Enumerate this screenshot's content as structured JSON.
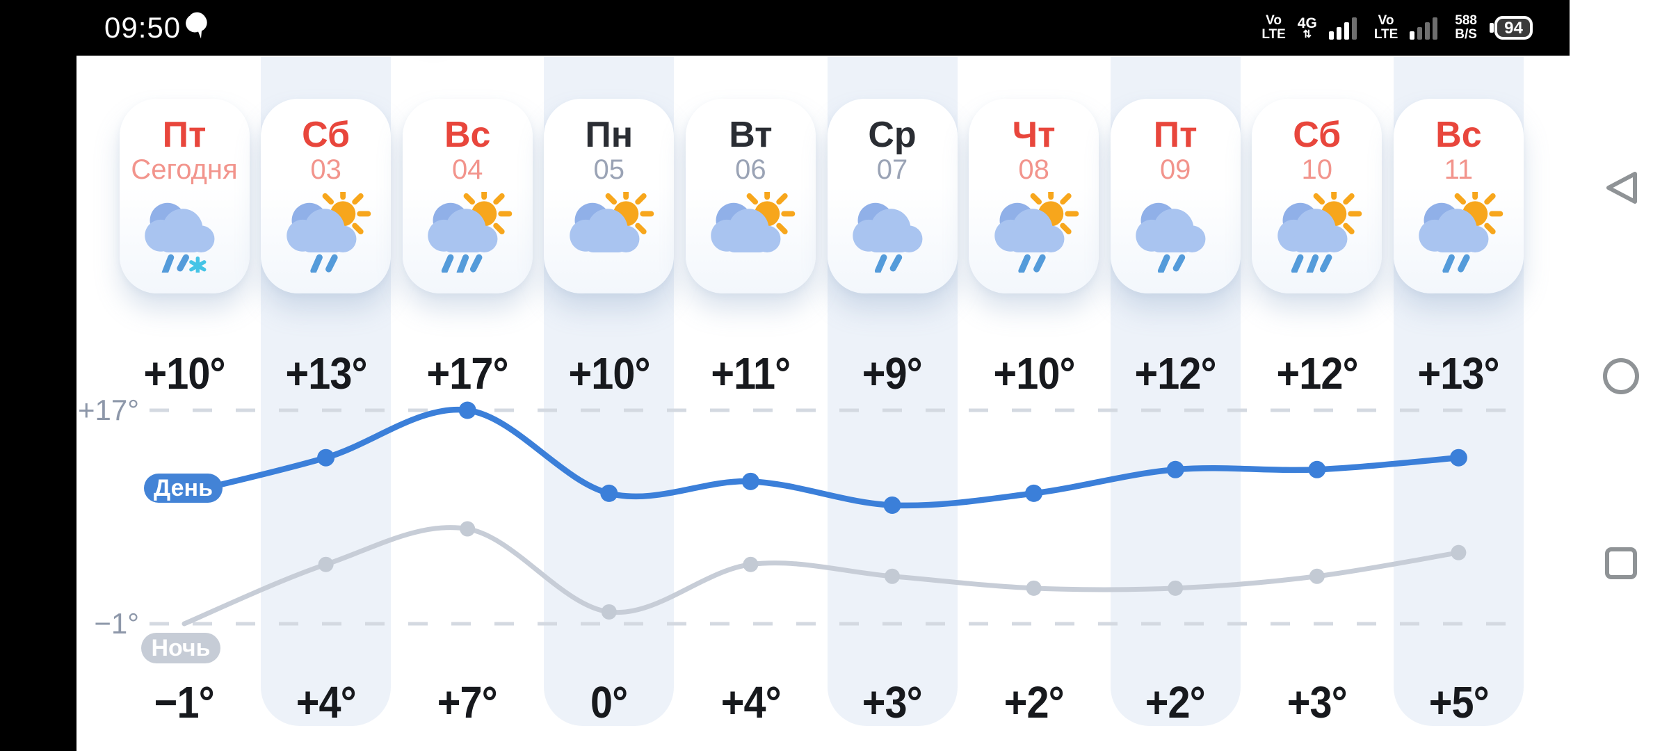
{
  "status_bar": {
    "time": "09:50",
    "notification_icon": "chat-bubble-icon",
    "sim1": {
      "line1": "Vo",
      "line2": "LTE",
      "network": "4G",
      "net_arrows": "⇅"
    },
    "sim2": {
      "line1": "Vo",
      "line2": "LTE"
    },
    "speed": {
      "value": "588",
      "unit": "B/S"
    },
    "battery_percent": "94"
  },
  "forecast": {
    "days": [
      {
        "name": "Пт",
        "date": "Сегодня",
        "holiday": true,
        "striped": false,
        "icon": "cloud-rain-snow",
        "day_temp": "+10°",
        "night_temp": "−1°"
      },
      {
        "name": "Сб",
        "date": "03",
        "holiday": true,
        "striped": true,
        "icon": "sun-cloud-rain-2",
        "day_temp": "+13°",
        "night_temp": "+4°"
      },
      {
        "name": "Вс",
        "date": "04",
        "holiday": true,
        "striped": false,
        "icon": "sun-cloud-rain-3",
        "day_temp": "+17°",
        "night_temp": "+7°"
      },
      {
        "name": "Пн",
        "date": "05",
        "holiday": false,
        "striped": true,
        "icon": "sun-cloud",
        "day_temp": "+10°",
        "night_temp": "0°"
      },
      {
        "name": "Вт",
        "date": "06",
        "holiday": false,
        "striped": false,
        "icon": "sun-cloud",
        "day_temp": "+11°",
        "night_temp": "+4°"
      },
      {
        "name": "Ср",
        "date": "07",
        "holiday": false,
        "striped": true,
        "icon": "cloud-rain-2",
        "day_temp": "+9°",
        "night_temp": "+3°"
      },
      {
        "name": "Чт",
        "date": "08",
        "holiday": true,
        "striped": false,
        "icon": "sun-cloud-rain-2",
        "day_temp": "+10°",
        "night_temp": "+2°"
      },
      {
        "name": "Пт",
        "date": "09",
        "holiday": true,
        "striped": true,
        "icon": "cloud-rain-2",
        "day_temp": "+12°",
        "night_temp": "+2°"
      },
      {
        "name": "Сб",
        "date": "10",
        "holiday": true,
        "striped": false,
        "icon": "sun-cloud-rain-3",
        "day_temp": "+12°",
        "night_temp": "+3°"
      },
      {
        "name": "Вс",
        "date": "11",
        "holiday": true,
        "striped": true,
        "icon": "sun-cloud-rain-2",
        "day_temp": "+13°",
        "night_temp": "+5°"
      }
    ]
  },
  "chart": {
    "axis_top_label": "+17°",
    "axis_bottom_label": "−1°",
    "legend_day": "День",
    "legend_night": "Ночь"
  },
  "chart_data": {
    "type": "line",
    "categories": [
      "Пт",
      "Сб",
      "Вс",
      "Пн",
      "Вт",
      "Ср",
      "Чт",
      "Пт",
      "Сб",
      "Вс"
    ],
    "series": [
      {
        "name": "День",
        "values": [
          10,
          13,
          17,
          10,
          11,
          9,
          10,
          12,
          12,
          13
        ]
      },
      {
        "name": "Ночь",
        "values": [
          -1,
          4,
          7,
          0,
          4,
          3,
          2,
          2,
          3,
          5
        ]
      }
    ],
    "ylim": [
      -1,
      17
    ],
    "gridlines": [
      17,
      -1
    ],
    "grid": "dashed",
    "legend_position": "left-on-lines"
  },
  "colors": {
    "holiday_red": "#e8463c",
    "holiday_date": "#f2948c",
    "weekday_dark": "#2a2d33",
    "weekday_date": "#9aa3b5",
    "stripe": "#edf2f9",
    "day_line": "#3b7fd9",
    "night_line": "#c7cdd7",
    "night_dot": "#c3cad4",
    "badge_day_bg": "#4383d6",
    "badge_night_bg": "#c6ccd6",
    "grid_dash": "#d4d9e1",
    "axis_text": "#8d97a9",
    "temp_text": "#17191d",
    "icon_cloud": "#a9c4f0",
    "icon_cloud_back": "#90b0e8",
    "icon_sun": "#f7a61c",
    "icon_drop": "#549bda",
    "icon_snow": "#45c4e6",
    "nav_icon": "#8f9396"
  },
  "nav": {
    "back": "back",
    "home": "home",
    "recents": "recents"
  }
}
